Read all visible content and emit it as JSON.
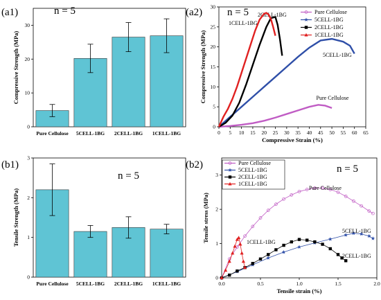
{
  "chart_data": [
    {
      "id": "a1",
      "type": "bar",
      "panel_label": "(a1)",
      "n_label": "n = 5",
      "categories": [
        "Pure Cellulose",
        "5CELL-1BG",
        "2CELL-1BG",
        "1CELL-1BG"
      ],
      "values": [
        4.8,
        20.2,
        26.5,
        26.9
      ],
      "errors": [
        1.8,
        4.2,
        4.3,
        5.0
      ],
      "ylabel": "Compressive Strength (MPa)",
      "xlabel": "",
      "ylim": [
        0,
        35
      ],
      "yticks": [
        0,
        10,
        20,
        30
      ],
      "bar_color": "#5fc4d4"
    },
    {
      "id": "a2",
      "type": "line",
      "panel_label": "(a2)",
      "n_label": "n = 5",
      "xlabel": "Compressive Strain (%)",
      "ylabel": "Compressive Strength (MPa)",
      "xlim": [
        0,
        65
      ],
      "ylim": [
        0,
        30
      ],
      "xticks": [
        0,
        5,
        10,
        15,
        20,
        25,
        30,
        35,
        40,
        45,
        50,
        55,
        60,
        65
      ],
      "yticks": [
        0,
        5,
        10,
        15,
        20,
        25,
        30
      ],
      "legend_position": "top-right",
      "series": [
        {
          "name": "Pure Cellulose",
          "color": "#c05cc4",
          "marker": "circle",
          "x": [
            0,
            5,
            10,
            15,
            20,
            25,
            30,
            35,
            40,
            44,
            47,
            50
          ],
          "y": [
            0,
            0.2,
            0.5,
            0.9,
            1.5,
            2.3,
            3.2,
            4.1,
            5.0,
            5.5,
            5.3,
            4.7
          ],
          "annotation": "Pure Cellulose"
        },
        {
          "name": "5CELL-1BG",
          "color": "#2f4fa8",
          "marker": "star",
          "x": [
            0,
            5,
            10,
            15,
            20,
            25,
            30,
            35,
            40,
            45,
            50,
            55,
            58,
            60
          ],
          "y": [
            0,
            2.5,
            5.0,
            7.5,
            10.0,
            12.5,
            15.0,
            17.5,
            19.8,
            21.6,
            22.0,
            21.3,
            20.3,
            18.3
          ],
          "annotation": "5CELL-1BG"
        },
        {
          "name": "2CELL-1BG",
          "color": "#000000",
          "marker": "square",
          "x": [
            0,
            3,
            6,
            9,
            12,
            15,
            18,
            21,
            23,
            25,
            26,
            27,
            28
          ],
          "y": [
            0,
            1.0,
            2.8,
            6.0,
            10.5,
            15.5,
            20.5,
            25.0,
            27.2,
            27.5,
            25.5,
            22.0,
            17.8
          ],
          "annotation": "2CELL-1BG"
        },
        {
          "name": "1CELL-1BG",
          "color": "#e02020",
          "marker": "triangle",
          "x": [
            0,
            2,
            4,
            6,
            8,
            10,
            12,
            14,
            16,
            18,
            20,
            21,
            22,
            23,
            24,
            25
          ],
          "y": [
            0,
            2.5,
            4.5,
            7.0,
            10.0,
            13.5,
            17.0,
            20.5,
            24.0,
            26.8,
            28.3,
            28.5,
            28.1,
            27.0,
            25.0,
            22.8
          ],
          "annotation": "1CELL-1BG"
        }
      ]
    },
    {
      "id": "b1",
      "type": "bar",
      "panel_label": "(b1)",
      "n_label": "n = 5",
      "categories": [
        "Pure Cellulose",
        "5CELL-1BG",
        "2CELL-1BG",
        "1CELL-1BG"
      ],
      "values": [
        2.2,
        1.15,
        1.25,
        1.21
      ],
      "errors": [
        0.65,
        0.15,
        0.27,
        0.12
      ],
      "ylabel": "Tensile Strength (MPa)",
      "xlabel": "",
      "ylim": [
        0,
        3
      ],
      "yticks": [
        0,
        1,
        2,
        3
      ],
      "bar_color": "#5fc4d4"
    },
    {
      "id": "b2",
      "type": "line",
      "panel_label": "(b2)",
      "n_label": "n = 5",
      "xlabel": "Tensile strain (%)",
      "ylabel": "Tensile stress (MPa)",
      "xlim": [
        0,
        2.0
      ],
      "ylim": [
        0,
        3.5
      ],
      "xticks": [
        0.0,
        0.5,
        1.0,
        1.5,
        2.0
      ],
      "yticks": [
        0,
        1,
        2,
        3
      ],
      "legend_position": "top-left",
      "series": [
        {
          "name": "Pure Cellulose",
          "color": "#c05cc4",
          "marker": "circle",
          "x": [
            0,
            0.1,
            0.2,
            0.3,
            0.4,
            0.5,
            0.6,
            0.7,
            0.8,
            0.9,
            1.0,
            1.1,
            1.2,
            1.3,
            1.4,
            1.5,
            1.6,
            1.7,
            1.8,
            1.9,
            1.95
          ],
          "y": [
            0.0,
            0.55,
            0.9,
            1.22,
            1.5,
            1.75,
            1.97,
            2.15,
            2.3,
            2.42,
            2.52,
            2.58,
            2.62,
            2.62,
            2.58,
            2.5,
            2.38,
            2.24,
            2.1,
            1.95,
            1.88
          ],
          "annotation": "Pure Cellulose"
        },
        {
          "name": "5CELL-1BG",
          "color": "#2f4fa8",
          "marker": "star",
          "x": [
            0,
            0.2,
            0.4,
            0.6,
            0.8,
            1.0,
            1.2,
            1.4,
            1.6,
            1.7,
            1.8,
            1.9,
            1.95
          ],
          "y": [
            0,
            0.18,
            0.38,
            0.58,
            0.75,
            0.9,
            1.02,
            1.13,
            1.25,
            1.3,
            1.28,
            1.22,
            1.15
          ],
          "annotation": "5CELL-1BG"
        },
        {
          "name": "2CELL-1BG",
          "color": "#000000",
          "marker": "square",
          "x": [
            0,
            0.1,
            0.2,
            0.3,
            0.4,
            0.5,
            0.6,
            0.7,
            0.8,
            0.9,
            1.0,
            1.1,
            1.2,
            1.3,
            1.4,
            1.5,
            1.55,
            1.6
          ],
          "y": [
            0,
            0.08,
            0.2,
            0.3,
            0.42,
            0.55,
            0.68,
            0.82,
            0.95,
            1.05,
            1.12,
            1.1,
            1.05,
            0.98,
            0.85,
            0.68,
            0.58,
            0.5
          ],
          "annotation": "2CELL-1BG"
        },
        {
          "name": "1CELL-1BG",
          "color": "#e02020",
          "marker": "triangle",
          "x": [
            0,
            0.05,
            0.1,
            0.14,
            0.17,
            0.2,
            0.22,
            0.24,
            0.26,
            0.28,
            0.3
          ],
          "y": [
            0,
            0.22,
            0.48,
            0.72,
            0.92,
            1.12,
            1.17,
            0.98,
            0.72,
            0.48,
            0.3
          ],
          "annotation": "1CELL-1BG"
        }
      ]
    }
  ]
}
